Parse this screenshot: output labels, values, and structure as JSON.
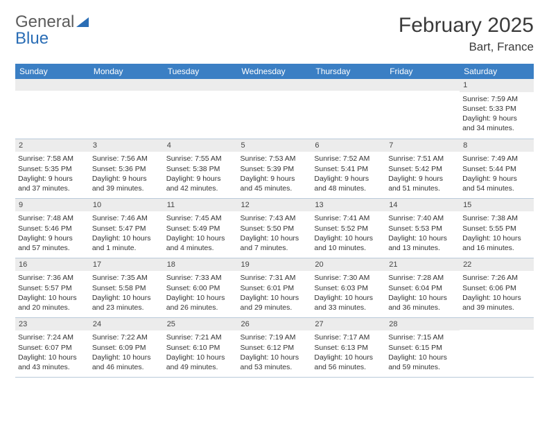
{
  "brand": {
    "text1": "General",
    "text2": "Blue",
    "tri_color": "#2a6db5"
  },
  "title": "February 2025",
  "location": "Bart, France",
  "weekday_header_bg": "#3b7fc4",
  "weekdays": [
    "Sunday",
    "Monday",
    "Tuesday",
    "Wednesday",
    "Thursday",
    "Friday",
    "Saturday"
  ],
  "weeks": [
    [
      null,
      null,
      null,
      null,
      null,
      null,
      {
        "n": "1",
        "sunrise": "7:59 AM",
        "sunset": "5:33 PM",
        "daylight": "9 hours and 34 minutes."
      }
    ],
    [
      {
        "n": "2",
        "sunrise": "7:58 AM",
        "sunset": "5:35 PM",
        "daylight": "9 hours and 37 minutes."
      },
      {
        "n": "3",
        "sunrise": "7:56 AM",
        "sunset": "5:36 PM",
        "daylight": "9 hours and 39 minutes."
      },
      {
        "n": "4",
        "sunrise": "7:55 AM",
        "sunset": "5:38 PM",
        "daylight": "9 hours and 42 minutes."
      },
      {
        "n": "5",
        "sunrise": "7:53 AM",
        "sunset": "5:39 PM",
        "daylight": "9 hours and 45 minutes."
      },
      {
        "n": "6",
        "sunrise": "7:52 AM",
        "sunset": "5:41 PM",
        "daylight": "9 hours and 48 minutes."
      },
      {
        "n": "7",
        "sunrise": "7:51 AM",
        "sunset": "5:42 PM",
        "daylight": "9 hours and 51 minutes."
      },
      {
        "n": "8",
        "sunrise": "7:49 AM",
        "sunset": "5:44 PM",
        "daylight": "9 hours and 54 minutes."
      }
    ],
    [
      {
        "n": "9",
        "sunrise": "7:48 AM",
        "sunset": "5:46 PM",
        "daylight": "9 hours and 57 minutes."
      },
      {
        "n": "10",
        "sunrise": "7:46 AM",
        "sunset": "5:47 PM",
        "daylight": "10 hours and 1 minute."
      },
      {
        "n": "11",
        "sunrise": "7:45 AM",
        "sunset": "5:49 PM",
        "daylight": "10 hours and 4 minutes."
      },
      {
        "n": "12",
        "sunrise": "7:43 AM",
        "sunset": "5:50 PM",
        "daylight": "10 hours and 7 minutes."
      },
      {
        "n": "13",
        "sunrise": "7:41 AM",
        "sunset": "5:52 PM",
        "daylight": "10 hours and 10 minutes."
      },
      {
        "n": "14",
        "sunrise": "7:40 AM",
        "sunset": "5:53 PM",
        "daylight": "10 hours and 13 minutes."
      },
      {
        "n": "15",
        "sunrise": "7:38 AM",
        "sunset": "5:55 PM",
        "daylight": "10 hours and 16 minutes."
      }
    ],
    [
      {
        "n": "16",
        "sunrise": "7:36 AM",
        "sunset": "5:57 PM",
        "daylight": "10 hours and 20 minutes."
      },
      {
        "n": "17",
        "sunrise": "7:35 AM",
        "sunset": "5:58 PM",
        "daylight": "10 hours and 23 minutes."
      },
      {
        "n": "18",
        "sunrise": "7:33 AM",
        "sunset": "6:00 PM",
        "daylight": "10 hours and 26 minutes."
      },
      {
        "n": "19",
        "sunrise": "7:31 AM",
        "sunset": "6:01 PM",
        "daylight": "10 hours and 29 minutes."
      },
      {
        "n": "20",
        "sunrise": "7:30 AM",
        "sunset": "6:03 PM",
        "daylight": "10 hours and 33 minutes."
      },
      {
        "n": "21",
        "sunrise": "7:28 AM",
        "sunset": "6:04 PM",
        "daylight": "10 hours and 36 minutes."
      },
      {
        "n": "22",
        "sunrise": "7:26 AM",
        "sunset": "6:06 PM",
        "daylight": "10 hours and 39 minutes."
      }
    ],
    [
      {
        "n": "23",
        "sunrise": "7:24 AM",
        "sunset": "6:07 PM",
        "daylight": "10 hours and 43 minutes."
      },
      {
        "n": "24",
        "sunrise": "7:22 AM",
        "sunset": "6:09 PM",
        "daylight": "10 hours and 46 minutes."
      },
      {
        "n": "25",
        "sunrise": "7:21 AM",
        "sunset": "6:10 PM",
        "daylight": "10 hours and 49 minutes."
      },
      {
        "n": "26",
        "sunrise": "7:19 AM",
        "sunset": "6:12 PM",
        "daylight": "10 hours and 53 minutes."
      },
      {
        "n": "27",
        "sunrise": "7:17 AM",
        "sunset": "6:13 PM",
        "daylight": "10 hours and 56 minutes."
      },
      {
        "n": "28",
        "sunrise": "7:15 AM",
        "sunset": "6:15 PM",
        "daylight": "10 hours and 59 minutes."
      },
      null
    ]
  ],
  "labels": {
    "sunrise": "Sunrise:",
    "sunset": "Sunset:",
    "daylight": "Daylight:"
  }
}
